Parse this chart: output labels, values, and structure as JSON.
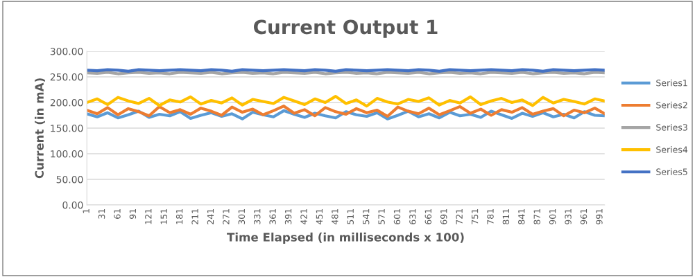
{
  "chart_data": {
    "type": "line",
    "title": "Current Output 1",
    "xlabel": "Time Elapsed (in milliseconds x 100)",
    "ylabel": "Current (in mA)",
    "x": [
      1,
      21,
      41,
      61,
      81,
      101,
      121,
      141,
      161,
      181,
      201,
      221,
      241,
      261,
      281,
      301,
      321,
      341,
      361,
      381,
      401,
      421,
      441,
      461,
      481,
      501,
      521,
      541,
      561,
      581,
      601,
      621,
      641,
      661,
      681,
      701,
      721,
      741,
      761,
      781,
      801,
      821,
      841,
      861,
      881,
      901,
      921,
      941,
      961,
      981,
      1000
    ],
    "series": [
      {
        "name": "Series1",
        "color": "#5b9bd5",
        "values": [
          178,
          172,
          180,
          170,
          176,
          183,
          171,
          177,
          174,
          182,
          169,
          175,
          180,
          173,
          178,
          168,
          181,
          176,
          172,
          184,
          177,
          171,
          179,
          174,
          170,
          182,
          176,
          173,
          180,
          168,
          175,
          183,
          172,
          178,
          170,
          181,
          174,
          177,
          171,
          183,
          176,
          169,
          179,
          173,
          180,
          172,
          177,
          170,
          182,
          175,
          174
        ]
      },
      {
        "name": "Series2",
        "color": "#ed7d31",
        "values": [
          185,
          178,
          190,
          176,
          188,
          182,
          174,
          192,
          180,
          186,
          177,
          189,
          183,
          175,
          191,
          181,
          187,
          176,
          184,
          193,
          179,
          186,
          174,
          190,
          182,
          177,
          188,
          180,
          185,
          173,
          191,
          183,
          178,
          189,
          176,
          184,
          192,
          179,
          187,
          175,
          186,
          181,
          190,
          177,
          183,
          188,
          174,
          185,
          180,
          189,
          178
        ]
      },
      {
        "name": "Series3",
        "color": "#a5a5a5",
        "values": [
          258,
          257,
          259,
          256,
          258,
          259,
          257,
          258,
          256,
          259,
          258,
          257,
          259,
          256,
          258,
          259,
          257,
          258,
          256,
          259,
          258,
          257,
          259,
          256,
          258,
          259,
          257,
          258,
          256,
          259,
          258,
          257,
          259,
          256,
          258,
          259,
          257,
          258,
          256,
          259,
          258,
          257,
          259,
          256,
          258,
          259,
          257,
          258,
          256,
          259,
          258
        ]
      },
      {
        "name": "Series4",
        "color": "#ffc000",
        "values": [
          200,
          207,
          196,
          210,
          203,
          198,
          208,
          194,
          205,
          201,
          211,
          197,
          204,
          199,
          209,
          195,
          206,
          202,
          198,
          210,
          203,
          196,
          207,
          200,
          212,
          198,
          205,
          193,
          208,
          201,
          197,
          206,
          202,
          209,
          195,
          204,
          199,
          211,
          196,
          203,
          208,
          200,
          205,
          194,
          210,
          199,
          206,
          202,
          197,
          207,
          203
        ]
      },
      {
        "name": "Series5",
        "color": "#4472c4",
        "values": [
          263,
          262,
          264,
          263,
          261,
          264,
          263,
          262,
          263,
          264,
          263,
          262,
          264,
          263,
          261,
          264,
          263,
          262,
          263,
          264,
          263,
          262,
          264,
          263,
          261,
          264,
          263,
          262,
          263,
          264,
          263,
          262,
          264,
          263,
          261,
          264,
          263,
          262,
          263,
          264,
          263,
          262,
          264,
          263,
          261,
          264,
          263,
          262,
          263,
          264,
          263
        ]
      }
    ],
    "xlim": [
      1,
      1000
    ],
    "xticks": [
      1,
      31,
      61,
      91,
      121,
      151,
      181,
      211,
      241,
      271,
      301,
      331,
      361,
      391,
      421,
      451,
      481,
      511,
      541,
      571,
      601,
      631,
      661,
      691,
      721,
      751,
      781,
      811,
      841,
      871,
      901,
      931,
      961,
      991
    ],
    "ylim": [
      0,
      300
    ],
    "yticks": [
      {
        "value": 0,
        "label": "0.00"
      },
      {
        "value": 50,
        "label": "50.00"
      },
      {
        "value": 100,
        "label": "100.00"
      },
      {
        "value": 150,
        "label": "150.00"
      },
      {
        "value": 200,
        "label": "200.00"
      },
      {
        "value": 250,
        "label": "250.00"
      },
      {
        "value": 300,
        "label": "300.00"
      }
    ],
    "grid": "y",
    "legend": "right",
    "marker": "none",
    "line_style": "solid"
  }
}
